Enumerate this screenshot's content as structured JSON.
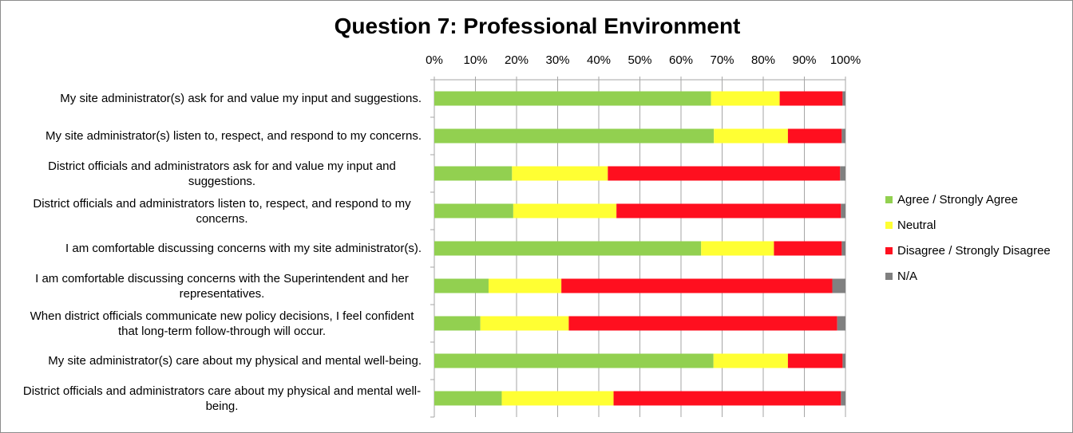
{
  "chart_data": {
    "type": "bar",
    "stacked": "percent",
    "orientation": "horizontal",
    "title": "Question 7:  Professional Environment",
    "xlabel": "",
    "ylabel": "",
    "xlim": [
      0,
      100
    ],
    "x_ticks": [
      "0%",
      "10%",
      "20%",
      "30%",
      "40%",
      "50%",
      "60%",
      "70%",
      "80%",
      "90%",
      "100%"
    ],
    "grid": "vertical",
    "legend_position": "right",
    "categories": [
      "My site administrator(s) ask for and value my input and suggestions.",
      "My site administrator(s) listen to, respect, and respond to my concerns.",
      "District officials and administrators ask for and value my input and suggestions.",
      "District officials and administrators listen to, respect, and respond to my concerns.",
      "I am comfortable discussing concerns with my site administrator(s).",
      "I am comfortable discussing concerns with the Superintendent and her representatives.",
      "When district officials communicate new policy decisions, I feel confident that long-term follow-through will occur.",
      "My site administrator(s) care about my physical and mental well-being.",
      "District officials and administrators care about my physical and mental well-being."
    ],
    "series": [
      {
        "name": "Agree / Strongly Agree",
        "color": "#92d050",
        "values": [
          67.3,
          68.0,
          18.9,
          19.2,
          64.9,
          13.2,
          11.2,
          67.9,
          16.4
        ]
      },
      {
        "name": "Neutral",
        "color": "#ffff33",
        "values": [
          16.7,
          18.0,
          23.3,
          25.1,
          17.7,
          17.7,
          21.5,
          18.1,
          27.2
        ]
      },
      {
        "name": "Disagree / Strongly Disagree",
        "color": "#ff0f1f",
        "values": [
          15.3,
          13.1,
          56.5,
          54.6,
          16.5,
          65.9,
          65.3,
          13.3,
          55.3
        ]
      },
      {
        "name": "N/A",
        "color": "#808080",
        "values": [
          0.7,
          0.9,
          1.3,
          1.1,
          0.9,
          3.2,
          2.0,
          0.7,
          1.1
        ]
      }
    ]
  }
}
